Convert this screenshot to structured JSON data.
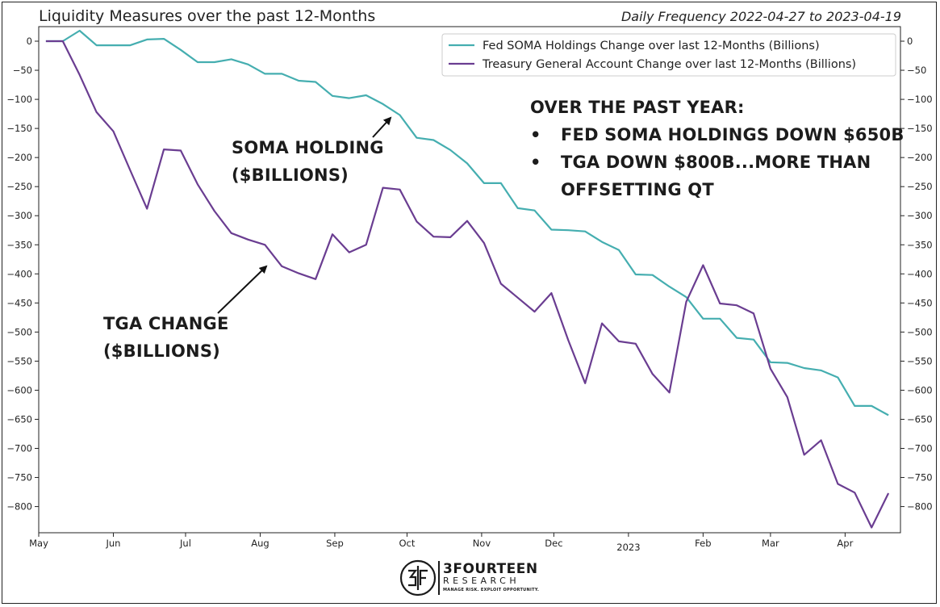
{
  "header": {
    "title": "Liquidity Measures over the past 12-Months",
    "subtitle": "Daily Frequency 2022-04-27 to 2023-04-19"
  },
  "annotations": {
    "soma_line1": "SOMA HOLDING",
    "soma_line2": "($BILLIONS)",
    "tga_line1": "TGA CHANGE",
    "tga_line2": "($BILLIONS)",
    "note_heading": "OVER THE PAST YEAR:",
    "note_bullet1": "FED SOMA HOLDINGS DOWN $650B",
    "note_bullet2a": "TGA DOWN $800B...MORE THAN",
    "note_bullet2b": "OFFSETTING QT",
    "bullet_char": "•"
  },
  "logo": {
    "name": "3FOURTEEN",
    "sub": "RESEARCH",
    "tagline": "MANAGE RISK. EXPLOIT OPPORTUNITY."
  },
  "chart_data": {
    "type": "line",
    "title": "Liquidity Measures over the past 12-Months",
    "subtitle": "Daily Frequency 2022-04-27 to 2023-04-19",
    "xlabel": "",
    "ylabel": "",
    "x_range": [
      "2022-05-01",
      "2023-04-24"
    ],
    "ylim": [
      -845,
      25
    ],
    "y_ticks": [
      0,
      -50,
      -100,
      -150,
      -200,
      -250,
      -300,
      -350,
      -400,
      -450,
      -500,
      -550,
      -600,
      -650,
      -700,
      -750,
      -800
    ],
    "y_tick_labels_both_sides": true,
    "x_ticks": [
      {
        "date": "2022-05-01",
        "label": "May",
        "sub": ""
      },
      {
        "date": "2022-06-01",
        "label": "Jun",
        "sub": ""
      },
      {
        "date": "2022-07-01",
        "label": "Jul",
        "sub": ""
      },
      {
        "date": "2022-08-01",
        "label": "Aug",
        "sub": ""
      },
      {
        "date": "2022-09-01",
        "label": "Sep",
        "sub": ""
      },
      {
        "date": "2022-10-01",
        "label": "Oct",
        "sub": ""
      },
      {
        "date": "2022-11-01",
        "label": "Nov",
        "sub": ""
      },
      {
        "date": "2022-12-01",
        "label": "Dec",
        "sub": ""
      },
      {
        "date": "2023-01-01",
        "label": "",
        "sub": "2023"
      },
      {
        "date": "2023-02-01",
        "label": "Feb",
        "sub": ""
      },
      {
        "date": "2023-03-01",
        "label": "Mar",
        "sub": ""
      },
      {
        "date": "2023-04-01",
        "label": "Apr",
        "sub": ""
      }
    ],
    "grid": false,
    "legend_position": "top-right",
    "series": [
      {
        "name": "Fed SOMA Holdings Change over last 12-Months (Billions)",
        "color": "#45aeb0",
        "points": [
          [
            "2022-05-04",
            0
          ],
          [
            "2022-05-11",
            0
          ],
          [
            "2022-05-18",
            18
          ],
          [
            "2022-05-25",
            -7
          ],
          [
            "2022-06-01",
            -7
          ],
          [
            "2022-06-08",
            -7
          ],
          [
            "2022-06-15",
            3
          ],
          [
            "2022-06-22",
            4
          ],
          [
            "2022-06-29",
            -15
          ],
          [
            "2022-07-06",
            -36
          ],
          [
            "2022-07-13",
            -36
          ],
          [
            "2022-07-20",
            -31
          ],
          [
            "2022-07-27",
            -40
          ],
          [
            "2022-08-03",
            -56
          ],
          [
            "2022-08-10",
            -56
          ],
          [
            "2022-08-17",
            -68
          ],
          [
            "2022-08-24",
            -70
          ],
          [
            "2022-08-31",
            -94
          ],
          [
            "2022-09-07",
            -98
          ],
          [
            "2022-09-14",
            -93
          ],
          [
            "2022-09-21",
            -108
          ],
          [
            "2022-09-28",
            -127
          ],
          [
            "2022-10-05",
            -166
          ],
          [
            "2022-10-12",
            -170
          ],
          [
            "2022-10-19",
            -187
          ],
          [
            "2022-10-26",
            -210
          ],
          [
            "2022-11-02",
            -244
          ],
          [
            "2022-11-09",
            -244
          ],
          [
            "2022-11-16",
            -287
          ],
          [
            "2022-11-23",
            -291
          ],
          [
            "2022-11-30",
            -324
          ],
          [
            "2022-12-07",
            -325
          ],
          [
            "2022-12-14",
            -327
          ],
          [
            "2022-12-21",
            -345
          ],
          [
            "2022-12-28",
            -359
          ],
          [
            "2023-01-04",
            -401
          ],
          [
            "2023-01-11",
            -402
          ],
          [
            "2023-01-18",
            -422
          ],
          [
            "2023-01-25",
            -440
          ],
          [
            "2023-02-01",
            -477
          ],
          [
            "2023-02-08",
            -477
          ],
          [
            "2023-02-15",
            -510
          ],
          [
            "2023-02-22",
            -513
          ],
          [
            "2023-03-01",
            -552
          ],
          [
            "2023-03-08",
            -553
          ],
          [
            "2023-03-15",
            -562
          ],
          [
            "2023-03-22",
            -566
          ],
          [
            "2023-03-29",
            -578
          ],
          [
            "2023-04-05",
            -627
          ],
          [
            "2023-04-12",
            -627
          ],
          [
            "2023-04-19",
            -643
          ]
        ]
      },
      {
        "name": "Treasury General Account Change over last 12-Months (Billions)",
        "color": "#6a3d91",
        "points": [
          [
            "2022-05-04",
            0
          ],
          [
            "2022-05-11",
            0
          ],
          [
            "2022-05-18",
            -58
          ],
          [
            "2022-05-25",
            -122
          ],
          [
            "2022-06-01",
            -155
          ],
          [
            "2022-06-08",
            -222
          ],
          [
            "2022-06-15",
            -288
          ],
          [
            "2022-06-22",
            -186
          ],
          [
            "2022-06-29",
            -188
          ],
          [
            "2022-07-06",
            -246
          ],
          [
            "2022-07-13",
            -292
          ],
          [
            "2022-07-20",
            -330
          ],
          [
            "2022-07-27",
            -341
          ],
          [
            "2022-08-03",
            -350
          ],
          [
            "2022-08-10",
            -387
          ],
          [
            "2022-08-17",
            -399
          ],
          [
            "2022-08-24",
            -409
          ],
          [
            "2022-08-31",
            -332
          ],
          [
            "2022-09-07",
            -363
          ],
          [
            "2022-09-14",
            -350
          ],
          [
            "2022-09-21",
            -252
          ],
          [
            "2022-09-28",
            -255
          ],
          [
            "2022-10-05",
            -310
          ],
          [
            "2022-10-12",
            -336
          ],
          [
            "2022-10-19",
            -337
          ],
          [
            "2022-10-26",
            -309
          ],
          [
            "2022-11-02",
            -347
          ],
          [
            "2022-11-09",
            -417
          ],
          [
            "2022-11-16",
            -441
          ],
          [
            "2022-11-23",
            -465
          ],
          [
            "2022-11-30",
            -433
          ],
          [
            "2022-12-07",
            -514
          ],
          [
            "2022-12-14",
            -588
          ],
          [
            "2022-12-21",
            -485
          ],
          [
            "2022-12-28",
            -516
          ],
          [
            "2023-01-04",
            -520
          ],
          [
            "2023-01-11",
            -572
          ],
          [
            "2023-01-18",
            -604
          ],
          [
            "2023-01-25",
            -448
          ],
          [
            "2023-02-01",
            -385
          ],
          [
            "2023-02-08",
            -451
          ],
          [
            "2023-02-15",
            -454
          ],
          [
            "2023-02-22",
            -468
          ],
          [
            "2023-03-01",
            -563
          ],
          [
            "2023-03-08",
            -612
          ],
          [
            "2023-03-15",
            -711
          ],
          [
            "2023-03-22",
            -686
          ],
          [
            "2023-03-29",
            -761
          ],
          [
            "2023-04-05",
            -776
          ],
          [
            "2023-04-12",
            -836
          ],
          [
            "2023-04-19",
            -777
          ]
        ]
      }
    ]
  }
}
